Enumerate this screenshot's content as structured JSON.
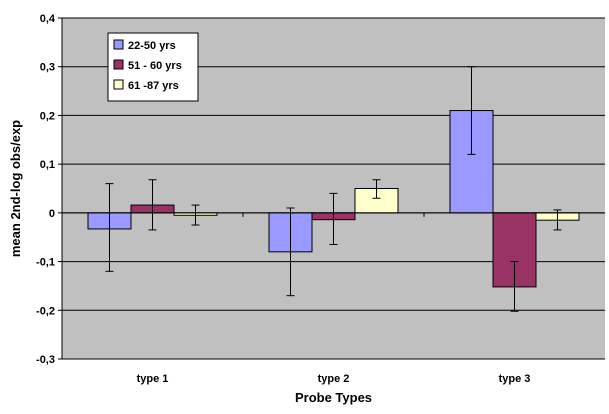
{
  "chart_data": {
    "type": "bar",
    "title": "",
    "xlabel": "Probe Types",
    "ylabel": "mean 2nd-log obs/exp",
    "categories": [
      "type 1",
      "type 2",
      "type 3"
    ],
    "ylim": [
      -0.3,
      0.4
    ],
    "yticks": [
      0.4,
      0.3,
      0.2,
      0.1,
      0,
      -0.1,
      -0.2,
      -0.3
    ],
    "ytick_labels": [
      "0,4",
      "0,3",
      "0,2",
      "0,1",
      "0",
      "-0,1",
      "-0,2",
      "-0,3"
    ],
    "grid": true,
    "legend_position": "top-left",
    "series": [
      {
        "name": "22-50 yrs",
        "color": "#9999ff",
        "values": [
          -0.033,
          -0.08,
          0.21
        ],
        "err_low": [
          -0.12,
          -0.17,
          0.12
        ],
        "err_high": [
          0.06,
          0.01,
          0.3
        ]
      },
      {
        "name": "51 - 60 yrs",
        "color": "#993366",
        "values": [
          0.016,
          -0.014,
          -0.152
        ],
        "err_low": [
          -0.035,
          -0.065,
          -0.202
        ],
        "err_high": [
          0.068,
          0.04,
          -0.1
        ]
      },
      {
        "name": "61 -87 yrs",
        "color": "#ffffcc",
        "values": [
          -0.005,
          0.05,
          -0.015
        ],
        "err_low": [
          -0.025,
          0.03,
          -0.035
        ],
        "err_high": [
          0.016,
          0.068,
          0.006
        ]
      }
    ],
    "colors": {
      "plot_background": "#c0c0c0",
      "gridline": "#000000"
    }
  }
}
